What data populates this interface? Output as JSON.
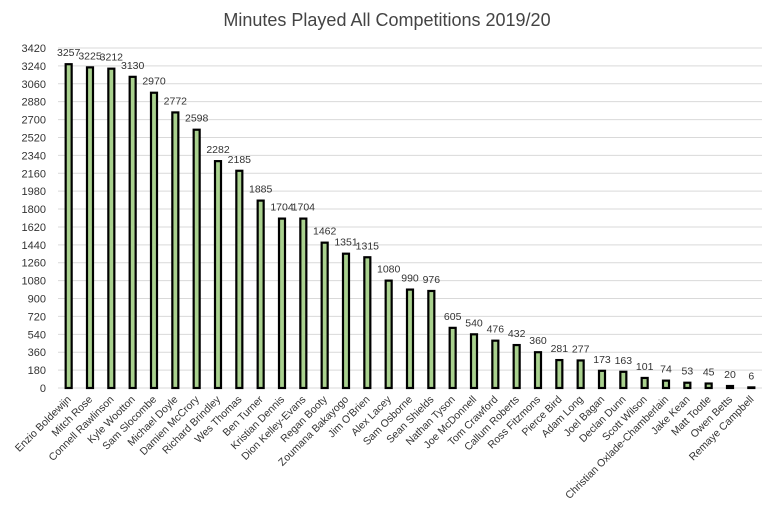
{
  "chart_data": {
    "type": "bar",
    "title": "Minutes Played All Competitions 2019/20",
    "xlabel": "",
    "ylabel": "",
    "ylim": [
      0,
      3420
    ],
    "yticks": [
      0,
      180,
      360,
      540,
      720,
      900,
      1080,
      1260,
      1440,
      1620,
      1800,
      1980,
      2160,
      2340,
      2520,
      2700,
      2880,
      3060,
      3240,
      3420
    ],
    "grid": true,
    "legend": "none",
    "bar_fill": "#a9d18e",
    "bar_stroke": "#000000",
    "categories": [
      "Enzio Boldewijn",
      "Mitch Rose",
      "Connell Rawlinson",
      "Kyle Wootton",
      "Sam Slocombe",
      "Michael Doyle",
      "Damien McCrory",
      "Richard Brindley",
      "Wes Thomas",
      "Ben Turner",
      "Kristian Dennis",
      "Dion Kelley-Evans",
      "Regan Booty",
      "Zoumana Bakayogo",
      "Jim O'Brien",
      "Alex Lacey",
      "Sam Osborne",
      "Sean Shields",
      "Nathan Tyson",
      "Joe McDonnell",
      "Tom Crawford",
      "Callum Roberts",
      "Ross Fitzmons",
      "Pierce Bird",
      "Adam Long",
      "Joel Bagan",
      "Declan Dunn",
      "Scott Wilson",
      "Christian Oxlade-Chamberlain",
      "Jake Kean",
      "Matt Tootle",
      "Owen Betts",
      "Remaye Campbell"
    ],
    "values": [
      3257,
      3225,
      3212,
      3130,
      2970,
      2772,
      2598,
      2282,
      2185,
      1885,
      1704,
      1704,
      1462,
      1351,
      1315,
      1080,
      990,
      976,
      605,
      540,
      476,
      432,
      360,
      281,
      277,
      173,
      163,
      101,
      74,
      53,
      45,
      20,
      6
    ]
  }
}
